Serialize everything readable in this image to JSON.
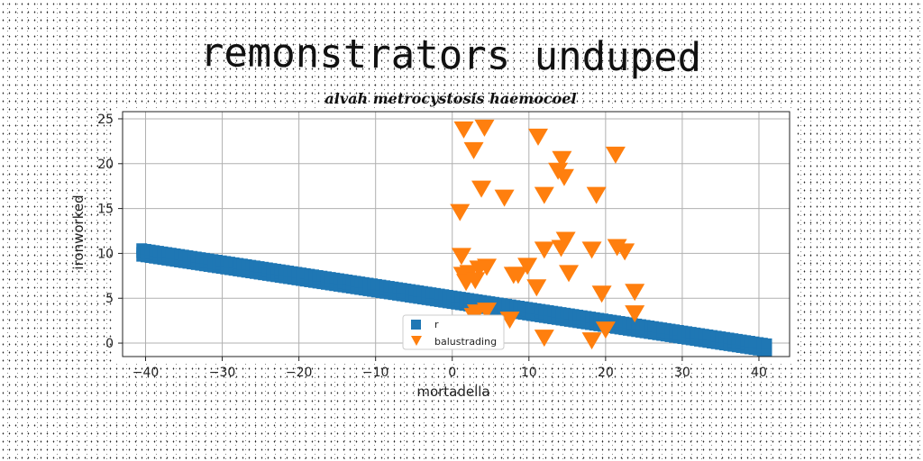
{
  "title": "remonstrators unduped",
  "subtitle": "alvah metrocystosis haemocoel",
  "chart_data": {
    "type": "scatter",
    "xlabel": "mortadella",
    "ylabel": "ironworked",
    "xlim": [
      -43,
      44
    ],
    "ylim": [
      -1.5,
      25.8
    ],
    "xticks": [
      -40,
      -30,
      -20,
      -10,
      0,
      10,
      20,
      30,
      40
    ],
    "yticks": [
      0,
      5,
      10,
      15,
      20,
      25
    ],
    "grid": true,
    "legend": "bottom-center",
    "series": [
      {
        "name": "r",
        "marker": "square",
        "color": "#1f77b4",
        "line": {
          "x_start": -40.5,
          "x_end": 41,
          "y_start": 10.1,
          "y_end": -0.5,
          "spread": 1.2,
          "count": 150
        }
      },
      {
        "name": "balustrading",
        "marker": "triangle-down",
        "color": "#ff7f0e",
        "points": [
          [
            1.5,
            23.8
          ],
          [
            4.2,
            24.0
          ],
          [
            11.2,
            23.0
          ],
          [
            2.8,
            21.5
          ],
          [
            14.3,
            20.5
          ],
          [
            21.3,
            21.0
          ],
          [
            13.8,
            19.2
          ],
          [
            14.6,
            18.5
          ],
          [
            3.8,
            17.2
          ],
          [
            6.8,
            16.2
          ],
          [
            12.0,
            16.5
          ],
          [
            18.8,
            16.5
          ],
          [
            1.0,
            14.6
          ],
          [
            14.8,
            11.5
          ],
          [
            14.2,
            10.6
          ],
          [
            12.0,
            10.4
          ],
          [
            18.2,
            10.4
          ],
          [
            21.5,
            10.7
          ],
          [
            22.5,
            10.2
          ],
          [
            1.2,
            9.7
          ],
          [
            3.5,
            8.3
          ],
          [
            4.5,
            8.5
          ],
          [
            9.8,
            8.6
          ],
          [
            1.4,
            7.6
          ],
          [
            2.2,
            7.8
          ],
          [
            8.6,
            7.6
          ],
          [
            15.2,
            7.8
          ],
          [
            1.8,
            6.8
          ],
          [
            3.0,
            7.0
          ],
          [
            8.0,
            7.6
          ],
          [
            11.0,
            6.2
          ],
          [
            23.8,
            5.7
          ],
          [
            19.5,
            5.5
          ],
          [
            3.2,
            3.4
          ],
          [
            4.5,
            3.6
          ],
          [
            7.5,
            2.6
          ],
          [
            23.8,
            3.3
          ],
          [
            20.0,
            1.5
          ],
          [
            12.0,
            0.6
          ],
          [
            18.2,
            0.3
          ],
          [
            2.8,
            3.0
          ]
        ]
      }
    ]
  }
}
